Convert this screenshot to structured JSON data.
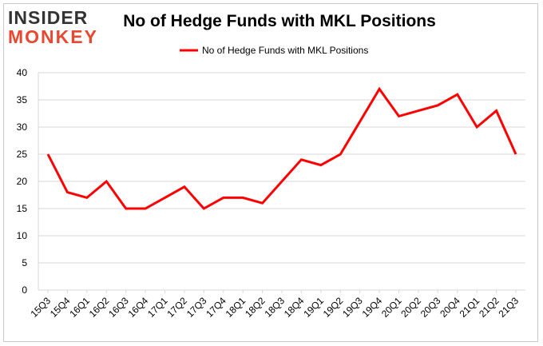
{
  "logo": {
    "line1": "INSIDER",
    "line2": "MONKEY"
  },
  "chart_data": {
    "type": "line",
    "title": "No of Hedge Funds with MKL Positions",
    "xlabel": "",
    "ylabel": "",
    "ylim": [
      0,
      40
    ],
    "yticks": [
      0,
      5,
      10,
      15,
      20,
      25,
      30,
      35,
      40
    ],
    "grid": true,
    "legend_position": "top-center",
    "categories": [
      "15Q3",
      "15Q4",
      "16Q1",
      "16Q2",
      "16Q3",
      "16Q4",
      "17Q1",
      "17Q2",
      "17Q3",
      "17Q4",
      "18Q1",
      "18Q2",
      "18Q3",
      "18Q4",
      "19Q1",
      "19Q2",
      "19Q3",
      "19Q4",
      "20Q1",
      "20Q2",
      "20Q3",
      "20Q4",
      "21Q1",
      "21Q2",
      "21Q3"
    ],
    "series": [
      {
        "name": "No of Hedge Funds with MKL Positions",
        "color": "#ff0000",
        "values": [
          25,
          18,
          17,
          20,
          15,
          15,
          17,
          19,
          15,
          17,
          17,
          16,
          20,
          24,
          23,
          25,
          31,
          37,
          32,
          33,
          34,
          36,
          30,
          33,
          25
        ]
      }
    ]
  }
}
